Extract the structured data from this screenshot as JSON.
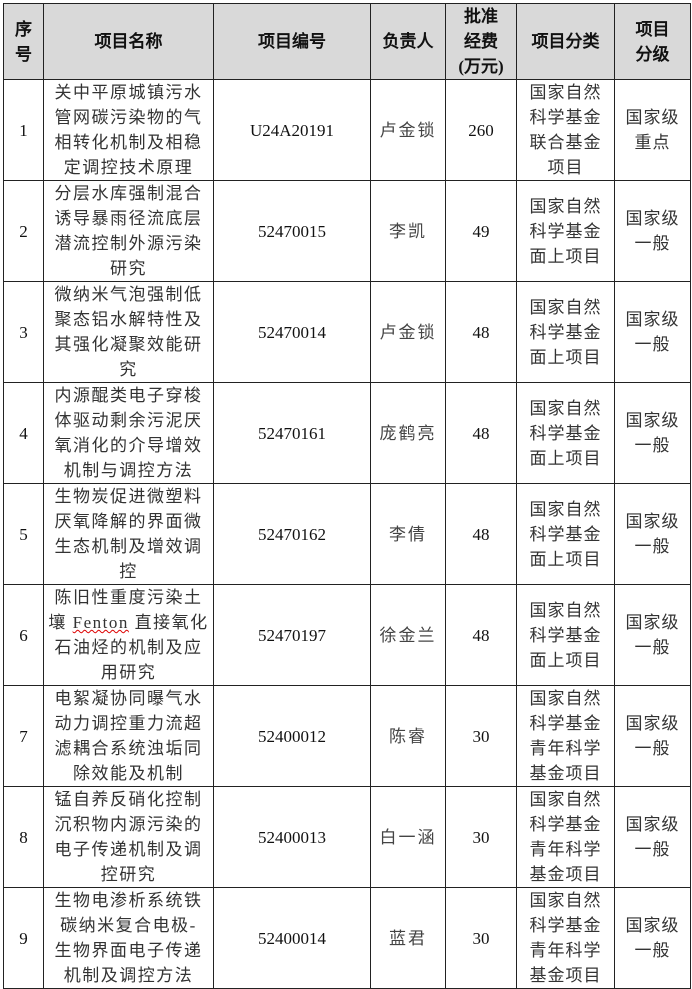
{
  "header": {
    "index": "序\n号",
    "name": "项目名称",
    "code": "项目编号",
    "person": "负责人",
    "fund": "批准\n经费\n(万元)",
    "category": "项目分类",
    "level": "项目\n分级"
  },
  "rows": [
    {
      "index": "1",
      "name": "关中平原城镇污水\n管网碳污染物的气\n相转化机制及相稳\n定调控技术原理",
      "code": "U24A20191",
      "person": "卢金锁",
      "fund": "260",
      "category": "国家自然\n科学基金\n联合基金\n项目",
      "level": "国家级\n重点"
    },
    {
      "index": "2",
      "name": "分层水库强制混合\n诱导暴雨径流底层\n潜流控制外源污染\n研究",
      "code": "52470015",
      "person": "李凯",
      "fund": "49",
      "category": "国家自然\n科学基金\n面上项目",
      "level": "国家级\n一般"
    },
    {
      "index": "3",
      "name": "微纳米气泡强制低\n聚态铝水解特性及\n其强化凝聚效能研\n究",
      "code": "52470014",
      "person": "卢金锁",
      "fund": "48",
      "category": "国家自然\n科学基金\n面上项目",
      "level": "国家级\n一般"
    },
    {
      "index": "4",
      "name": "内源醌类电子穿梭\n体驱动剩余污泥厌\n氧消化的介导增效\n机制与调控方法",
      "code": "52470161",
      "person": "庞鹤亮",
      "fund": "48",
      "category": "国家自然\n科学基金\n面上项目",
      "level": "国家级\n一般"
    },
    {
      "index": "5",
      "name": "生物炭促进微塑料\n厌氧降解的界面微\n生态机制及增效调\n控",
      "code": "52470162",
      "person": "李倩",
      "fund": "48",
      "category": "国家自然\n科学基金\n面上项目",
      "level": "国家级\n一般"
    },
    {
      "index": "6",
      "name": "陈旧性重度污染土\n壤 Fenton 直接氧化\n石油烃的机制及应\n用研究",
      "code": "52470197",
      "person": "徐金兰",
      "fund": "48",
      "category": "国家自然\n科学基金\n面上项目",
      "level": "国家级\n一般"
    },
    {
      "index": "7",
      "name": "电絮凝协同曝气水\n动力调控重力流超\n滤耦合系统浊垢同\n除效能及机制",
      "code": "52400012",
      "person": "陈睿",
      "fund": "30",
      "category": "国家自然\n科学基金\n青年科学\n基金项目",
      "level": "国家级\n一般"
    },
    {
      "index": "8",
      "name": "锰自养反硝化控制\n沉积物内源污染的\n电子传递机制及调\n控研究",
      "code": "52400013",
      "person": "白一涵",
      "fund": "30",
      "category": "国家自然\n科学基金\n青年科学\n基金项目",
      "level": "国家级\n一般"
    },
    {
      "index": "9",
      "name": "生物电渗析系统铁\n碳纳米复合电极-\n生物界面电子传递\n机制及调控方法",
      "code": "52400014",
      "person": "蓝君",
      "fund": "30",
      "category": "国家自然\n科学基金\n青年科学\n基金项目",
      "level": "国家级\n一般"
    }
  ]
}
